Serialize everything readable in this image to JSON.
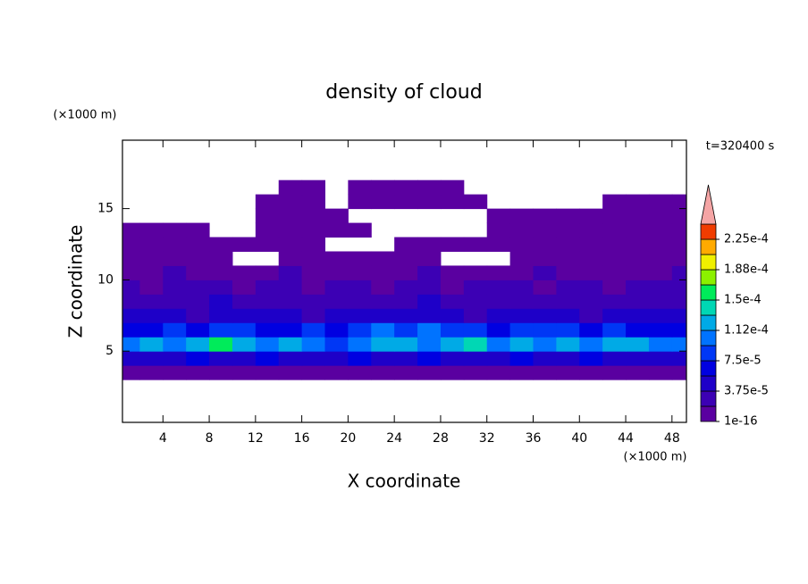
{
  "chart_data": {
    "type": "contour",
    "title": "density of cloud",
    "x_label": "X coordinate",
    "y_label": "Z coordinate",
    "x_unit": "(×1000 m)",
    "y_unit": "(×1000 m)",
    "annotation": "t=320400 s",
    "xlim": [
      0.5,
      49.25
    ],
    "ylim": [
      0,
      19.8
    ],
    "xticks": [
      4,
      8,
      12,
      16,
      20,
      24,
      28,
      32,
      36,
      40,
      44,
      48
    ],
    "yticks": [
      5,
      10,
      15
    ],
    "x": [
      1,
      3,
      5,
      7,
      9,
      11,
      13,
      15,
      17,
      19,
      21,
      23,
      25,
      27,
      29,
      31,
      33,
      35,
      37,
      39,
      41,
      43,
      45,
      47,
      49
    ],
    "z": [
      0.5,
      1.5,
      2.5,
      3.5,
      4.5,
      5.5,
      6.5,
      7.5,
      8.5,
      9.5,
      10.5,
      11.5,
      12.5,
      13.5,
      14.5,
      15.5,
      16.5,
      17.5,
      18.5,
      19.5
    ],
    "values": [
      [
        null,
        null,
        null,
        null,
        null,
        null,
        null,
        null,
        null,
        null,
        null,
        null,
        null,
        null,
        null,
        null,
        null,
        null,
        null,
        null,
        null,
        null,
        null,
        null,
        null
      ],
      [
        null,
        null,
        null,
        null,
        null,
        null,
        null,
        null,
        null,
        null,
        null,
        null,
        null,
        null,
        null,
        null,
        null,
        null,
        null,
        null,
        null,
        null,
        null,
        null,
        null
      ],
      [
        null,
        null,
        null,
        null,
        null,
        null,
        null,
        null,
        null,
        null,
        null,
        null,
        null,
        null,
        null,
        null,
        null,
        null,
        null,
        null,
        null,
        null,
        null,
        null,
        null
      ],
      [
        1e-05,
        1e-05,
        1e-05,
        1e-05,
        1e-05,
        1e-05,
        1e-05,
        1e-05,
        1e-05,
        1e-05,
        1e-05,
        1e-05,
        1e-05,
        1e-05,
        1e-05,
        1e-05,
        1e-05,
        1e-05,
        1e-05,
        1e-05,
        1e-05,
        1e-05,
        1e-05,
        1e-05,
        1e-05
      ],
      [
        4e-05,
        5e-05,
        4e-05,
        6e-05,
        5e-05,
        4e-05,
        6e-05,
        5e-05,
        4e-05,
        5e-05,
        6e-05,
        4e-05,
        5e-05,
        6e-05,
        5e-05,
        4e-05,
        5e-05,
        6e-05,
        4e-05,
        5e-05,
        6e-05,
        5e-05,
        4e-05,
        5e-05,
        4e-05
      ],
      [
        0.0001,
        0.00012,
        0.00011,
        0.00013,
        0.00016,
        0.00012,
        0.00011,
        0.00012,
        0.0001,
        9e-05,
        0.0001,
        0.00012,
        0.00013,
        0.00011,
        0.00012,
        0.00014,
        0.00011,
        0.00012,
        0.0001,
        0.00012,
        0.00011,
        0.00013,
        0.00012,
        0.0001,
        0.00011
      ],
      [
        6e-05,
        7e-05,
        8e-05,
        7e-05,
        9e-05,
        8e-05,
        6e-05,
        7e-05,
        8e-05,
        7e-05,
        9e-05,
        0.0001,
        8e-05,
        0.00011,
        9e-05,
        8e-05,
        7e-05,
        8e-05,
        9e-05,
        8e-05,
        7e-05,
        8e-05,
        7e-05,
        6e-05,
        7e-05
      ],
      [
        4e-05,
        5e-05,
        4e-05,
        3e-05,
        5e-05,
        4e-05,
        4e-05,
        5e-05,
        3e-05,
        4e-05,
        5e-05,
        4e-05,
        4e-05,
        5e-05,
        4e-05,
        3e-05,
        4e-05,
        5e-05,
        4e-05,
        4e-05,
        3e-05,
        4e-05,
        5e-05,
        4e-05,
        4e-05
      ],
      [
        3e-05,
        2e-05,
        3e-05,
        3e-05,
        4e-05,
        2e-05,
        3e-05,
        3e-05,
        2e-05,
        3e-05,
        3e-05,
        2e-05,
        3e-05,
        4e-05,
        3e-05,
        2e-05,
        3e-05,
        3e-05,
        2e-05,
        3e-05,
        3e-05,
        2e-05,
        3e-05,
        3e-05,
        2e-05
      ],
      [
        2e-05,
        1e-05,
        2e-05,
        3e-05,
        2e-05,
        1e-05,
        2e-05,
        2e-05,
        1e-05,
        2e-05,
        2e-05,
        1e-05,
        2e-05,
        2e-05,
        1e-05,
        2e-05,
        3e-05,
        2e-05,
        1e-05,
        2e-05,
        2e-05,
        1e-05,
        2e-05,
        3e-05,
        2e-05
      ],
      [
        1e-05,
        1e-05,
        2e-05,
        1e-05,
        1e-05,
        1e-05,
        1e-05,
        2e-05,
        1e-05,
        1e-05,
        1e-05,
        1e-05,
        1e-05,
        2e-05,
        1e-05,
        1e-05,
        1e-05,
        1e-05,
        2e-05,
        1e-05,
        1e-05,
        1e-05,
        1e-05,
        1e-05,
        2e-05
      ],
      [
        1e-05,
        1e-05,
        1e-05,
        1e-05,
        1e-05,
        null,
        null,
        1e-05,
        1e-05,
        1e-05,
        1e-05,
        1e-05,
        1e-05,
        1e-05,
        null,
        null,
        null,
        1e-05,
        1e-05,
        1e-05,
        1e-05,
        1e-05,
        1e-05,
        1e-05,
        1e-05
      ],
      [
        1e-05,
        1e-05,
        1e-05,
        1e-05,
        1e-05,
        1e-05,
        1e-05,
        1e-05,
        1e-05,
        null,
        null,
        null,
        1e-05,
        1e-05,
        1e-05,
        1e-05,
        1e-05,
        1e-05,
        1e-05,
        1e-05,
        1e-05,
        1e-05,
        1e-05,
        1e-05,
        1e-05
      ],
      [
        1e-05,
        1e-05,
        1e-05,
        1e-05,
        null,
        null,
        1e-05,
        1e-05,
        1e-05,
        1e-05,
        1e-05,
        null,
        null,
        null,
        null,
        null,
        1e-05,
        1e-05,
        1e-05,
        1e-05,
        1e-05,
        1e-05,
        1e-05,
        1e-05,
        1e-05
      ],
      [
        null,
        null,
        null,
        null,
        null,
        null,
        1e-05,
        1e-05,
        1e-05,
        1e-05,
        null,
        null,
        null,
        null,
        null,
        null,
        1e-05,
        1e-05,
        1e-05,
        1e-05,
        1e-05,
        1e-05,
        1e-05,
        1e-05,
        1e-05
      ],
      [
        null,
        null,
        null,
        null,
        null,
        null,
        1e-05,
        1e-05,
        1e-05,
        null,
        1e-05,
        1e-05,
        1e-05,
        1e-05,
        1e-05,
        1e-05,
        null,
        null,
        null,
        null,
        null,
        1e-05,
        1e-05,
        1e-05,
        1e-05
      ],
      [
        null,
        null,
        null,
        null,
        null,
        null,
        null,
        1e-05,
        1e-05,
        null,
        1e-05,
        1e-05,
        1e-05,
        1e-05,
        1e-05,
        null,
        null,
        null,
        null,
        null,
        null,
        null,
        null,
        null,
        null
      ],
      [
        null,
        null,
        null,
        null,
        null,
        null,
        null,
        null,
        null,
        null,
        null,
        null,
        null,
        null,
        null,
        null,
        null,
        null,
        null,
        null,
        null,
        null,
        null,
        null,
        null
      ],
      [
        null,
        null,
        null,
        null,
        null,
        null,
        null,
        null,
        null,
        null,
        null,
        null,
        null,
        null,
        null,
        null,
        null,
        null,
        null,
        null,
        null,
        null,
        null,
        null,
        null
      ],
      [
        null,
        null,
        null,
        null,
        null,
        null,
        null,
        null,
        null,
        null,
        null,
        null,
        null,
        null,
        null,
        null,
        null,
        null,
        null,
        null,
        null,
        null,
        null,
        null,
        null
      ]
    ],
    "levels": [
      1e-16,
      1.875e-05,
      3.75e-05,
      5.625e-05,
      7.5e-05,
      9.375e-05,
      0.0001125,
      0.00013125,
      0.00015,
      0.00016875,
      0.0001875,
      0.00020625,
      0.000225,
      0.00024375
    ],
    "colors": [
      "#5a00a0",
      "#3c00b4",
      "#1e00c8",
      "#0000e1",
      "#0037f5",
      "#0073ff",
      "#00aae6",
      "#00d7b4",
      "#00eb5a",
      "#8cf000",
      "#f0f000",
      "#ffaa00",
      "#f03c00"
    ],
    "extend_color": "#f5a5a5",
    "colorbar_ticks": [
      1e-16,
      {
        "value": 3.75e-05,
        "label": "3.75e-5"
      },
      {
        "value": 7.5e-05,
        "label": "7.5e-5"
      },
      {
        "value": 0.0001125,
        "label": "1.12e-4"
      },
      {
        "value": 0.00015,
        "label": "1.5e-4"
      },
      {
        "value": 0.0001875,
        "label": "1.88e-4"
      },
      {
        "value": 0.000225,
        "label": "2.25e-4"
      }
    ]
  }
}
